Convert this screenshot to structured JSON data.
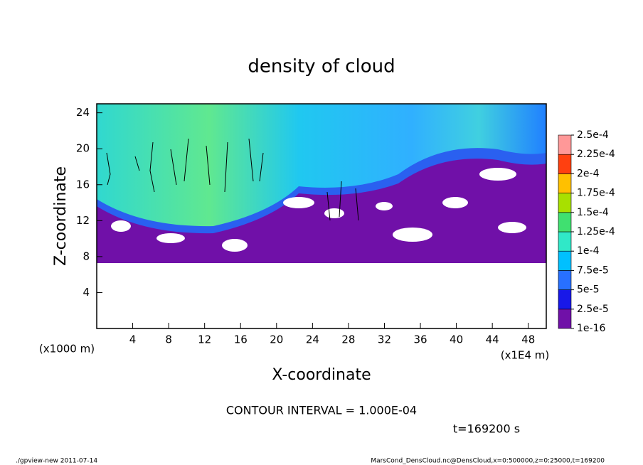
{
  "chart_data": {
    "type": "contour",
    "title": "density of cloud",
    "xlabel": "X-coordinate",
    "ylabel": "Z-coordinate",
    "x_unit": "(x1E4 m)",
    "y_unit": "(x1000 m)",
    "xlim": [
      0,
      50
    ],
    "xticks": [
      4,
      8,
      12,
      16,
      20,
      24,
      28,
      32,
      36,
      40,
      44,
      48
    ],
    "ylim": [
      0,
      25
    ],
    "yticks": [
      4,
      8,
      12,
      16,
      20,
      24
    ],
    "colorbar": {
      "levels": [
        1e-16,
        {
          "value": 2.5e-05,
          "label": "2.5e-5"
        },
        {
          "value": 5e-05,
          "label": "5e-5"
        },
        {
          "value": 7.5e-05,
          "label": "7.5e-5"
        },
        {
          "value": 0.0001,
          "label": "1e-4"
        },
        {
          "value": 0.000125,
          "label": "1.25e-4"
        },
        {
          "value": 0.00015,
          "label": "1.5e-4"
        },
        {
          "value": 0.000175,
          "label": "1.75e-4"
        },
        {
          "value": 0.0002,
          "label": "2e-4"
        },
        {
          "value": 0.000225,
          "label": "2.25e-4"
        },
        {
          "value": 0.00025,
          "label": "2.5e-4"
        }
      ],
      "colors": [
        "#7010a8",
        "#1818e8",
        "#2870ff",
        "#00c0ff",
        "#30e8c8",
        "#40e070",
        "#a8e000",
        "#ffc000",
        "#ff4010",
        "#ff9898"
      ]
    },
    "annotations": [
      "CONTOUR INTERVAL = 1.000E-04",
      "t=169200 s"
    ],
    "footer_left": "./gpview-new  2011-07-14",
    "footer_right": "MarsCond_DensCloud.nc@DensCloud,x=0:500000,z=0:25000,t=169200"
  }
}
